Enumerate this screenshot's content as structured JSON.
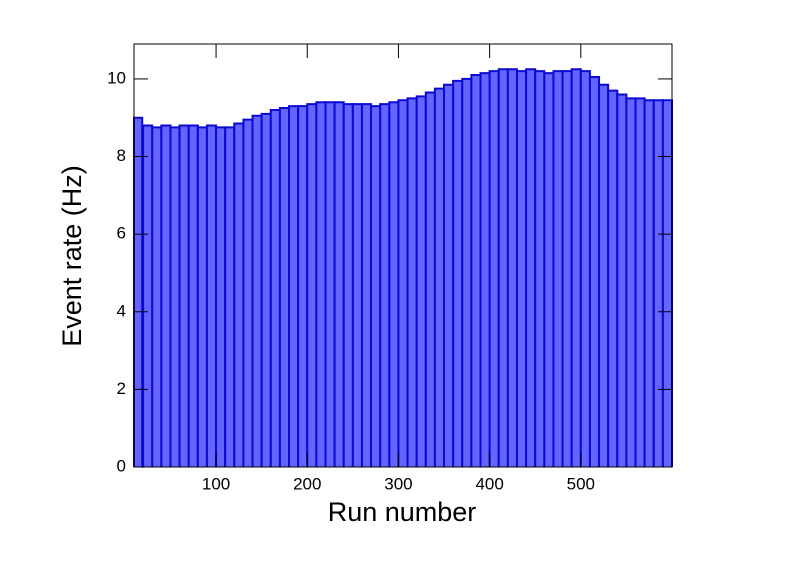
{
  "chart_data": {
    "type": "histogram",
    "xlabel": "Run number",
    "ylabel": "Event rate (Hz)",
    "bins": [
      10,
      19,
      20,
      30,
      40,
      50,
      60,
      70,
      80,
      90,
      100,
      110,
      120,
      130,
      140,
      150,
      160,
      170,
      180,
      190,
      200,
      210,
      220,
      230,
      240,
      250,
      260,
      270,
      280,
      290,
      300,
      310,
      320,
      330,
      340,
      350,
      360,
      370,
      380,
      390,
      400,
      410,
      420,
      430,
      440,
      450,
      460,
      470,
      480,
      490,
      500,
      510,
      520,
      530,
      540,
      550,
      560,
      570,
      580,
      590,
      600
    ],
    "values": [
      9.0,
      0,
      8.8,
      8.75,
      8.8,
      8.75,
      8.8,
      8.8,
      8.75,
      8.8,
      8.75,
      8.75,
      8.85,
      8.95,
      9.05,
      9.1,
      9.2,
      9.25,
      9.3,
      9.3,
      9.35,
      9.4,
      9.4,
      9.4,
      9.35,
      9.35,
      9.35,
      9.3,
      9.35,
      9.4,
      9.45,
      9.5,
      9.55,
      9.65,
      9.75,
      9.85,
      9.95,
      10.0,
      10.1,
      10.15,
      10.2,
      10.25,
      10.25,
      10.2,
      10.25,
      10.2,
      10.15,
      10.2,
      10.2,
      10.25,
      10.2,
      10.05,
      9.85,
      9.7,
      9.6,
      9.5,
      9.5,
      9.45,
      9.45,
      9.45
    ],
    "color": "#6464ff",
    "edge_color": "#0a0ad2",
    "xlim": [
      10,
      600
    ],
    "xticks": [
      100,
      200,
      300,
      400,
      500
    ],
    "ylim": [
      0,
      10.9
    ],
    "yticks": [
      0,
      2,
      4,
      6,
      8,
      10
    ]
  }
}
